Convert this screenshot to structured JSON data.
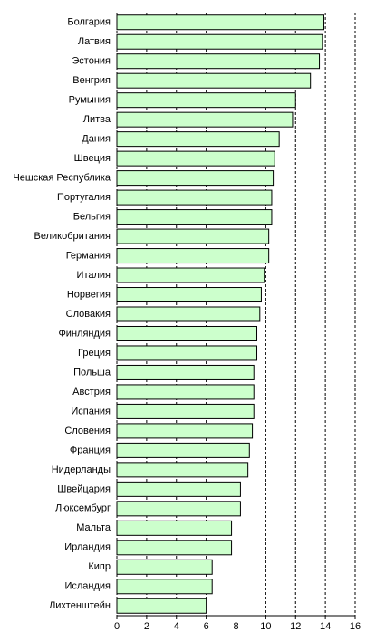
{
  "chart_data": {
    "type": "bar",
    "orientation": "horizontal",
    "categories": [
      "Болгария",
      "Латвия",
      "Эстония",
      "Венгрия",
      "Румыния",
      "Литва",
      "Дания",
      "Швеция",
      "Чешская Республика",
      "Португалия",
      "Бельгия",
      "Великобритания",
      "Германия",
      "Италия",
      "Норвегия",
      "Словакия",
      "Финляндия",
      "Греция",
      "Польша",
      "Австрия",
      "Испания",
      "Словения",
      "Франция",
      "Нидерланды",
      "Швейцария",
      "Люксембург",
      "Мальта",
      "Ирландия",
      "Кипр",
      "Исландия",
      "Лихтенштейн"
    ],
    "values": [
      13.9,
      13.8,
      13.6,
      13.0,
      12.0,
      11.8,
      10.9,
      10.6,
      10.5,
      10.4,
      10.4,
      10.2,
      10.2,
      9.9,
      9.7,
      9.6,
      9.4,
      9.4,
      9.2,
      9.2,
      9.2,
      9.1,
      8.9,
      8.8,
      8.3,
      8.3,
      7.7,
      7.7,
      6.4,
      6.4,
      6.0
    ],
    "color": "#ccffcc",
    "xlim": [
      0,
      16
    ],
    "xticks": [
      0,
      2,
      4,
      6,
      8,
      10,
      12,
      14,
      16
    ],
    "grid": true
  }
}
